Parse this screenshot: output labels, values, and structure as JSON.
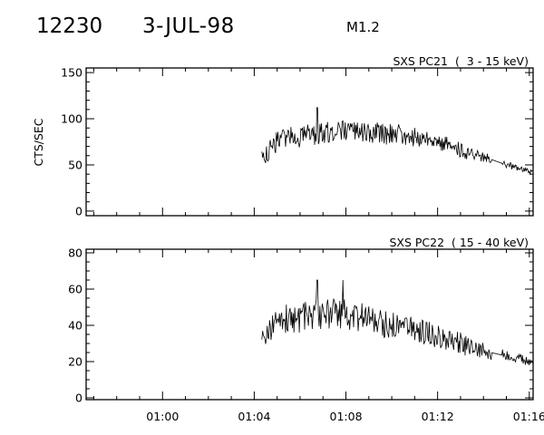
{
  "header": {
    "event_number": "12230",
    "date": "3-JUL-98",
    "flare_class": "M1.2"
  },
  "colors": {
    "background": "#ffffff",
    "ink": "#000000"
  },
  "chart_data": [
    {
      "type": "line",
      "panel": "top",
      "title": "SXS PC21  (  3 - 15 keV)",
      "ylabel": "CTS/SEC",
      "xlabel": "",
      "xlim": [
        "00:56:40",
        "01:16:10"
      ],
      "ylim": [
        -5,
        155
      ],
      "yticks": [
        0,
        50,
        100,
        150
      ],
      "xticks": [
        "01:00",
        "01:04",
        "01:08",
        "01:12",
        "01:16"
      ],
      "show_xtick_labels": false,
      "grid": false,
      "series": [
        {
          "x": [
            "01:04:20",
            "01:05:00",
            "01:05:40",
            "01:06:20",
            "01:07:00",
            "01:07:40",
            "01:08:20",
            "01:09:00",
            "01:09:40",
            "01:10:20",
            "01:11:00",
            "01:11:40",
            "01:12:20",
            "01:13:00",
            "01:13:40",
            "01:14:20",
            "01:15:00",
            "01:15:40",
            "01:16:10"
          ],
          "y": [
            55,
            75,
            80,
            82,
            85,
            87,
            86,
            85,
            84,
            82,
            80,
            77,
            73,
            66,
            60,
            56,
            50,
            45,
            41
          ],
          "noise_amplitude": [
            10,
            12,
            12,
            12,
            13,
            12,
            11,
            11,
            12,
            12,
            11,
            10,
            9,
            8,
            7,
            5,
            4,
            3,
            3
          ],
          "peak_max": 112
        }
      ]
    },
    {
      "type": "line",
      "panel": "bottom",
      "title": "SXS PC22  ( 15 - 40 keV)",
      "ylabel": "",
      "xlabel": "",
      "xlim": [
        "00:56:40",
        "01:16:10"
      ],
      "ylim": [
        -1,
        82
      ],
      "yticks": [
        0,
        20,
        40,
        60,
        80
      ],
      "xticks": [
        "01:00",
        "01:04",
        "01:08",
        "01:12",
        "01:16"
      ],
      "show_xtick_labels": true,
      "grid": false,
      "series": [
        {
          "x": [
            "01:04:20",
            "01:05:00",
            "01:05:40",
            "01:06:20",
            "01:07:00",
            "01:07:40",
            "01:08:20",
            "01:09:00",
            "01:09:40",
            "01:10:20",
            "01:11:00",
            "01:11:40",
            "01:12:20",
            "01:13:00",
            "01:13:40",
            "01:14:20",
            "01:15:00",
            "01:15:40",
            "01:16:10"
          ],
          "y": [
            34,
            42,
            44,
            45,
            46,
            46,
            45,
            43,
            41,
            39,
            37,
            35,
            32,
            30,
            27,
            25,
            23,
            21,
            19
          ],
          "noise_amplitude": [
            6,
            8,
            9,
            9,
            9,
            9,
            9,
            8,
            8,
            8,
            7,
            7,
            6,
            6,
            5,
            4,
            3,
            3,
            3
          ],
          "peak_max": 65
        }
      ]
    }
  ]
}
